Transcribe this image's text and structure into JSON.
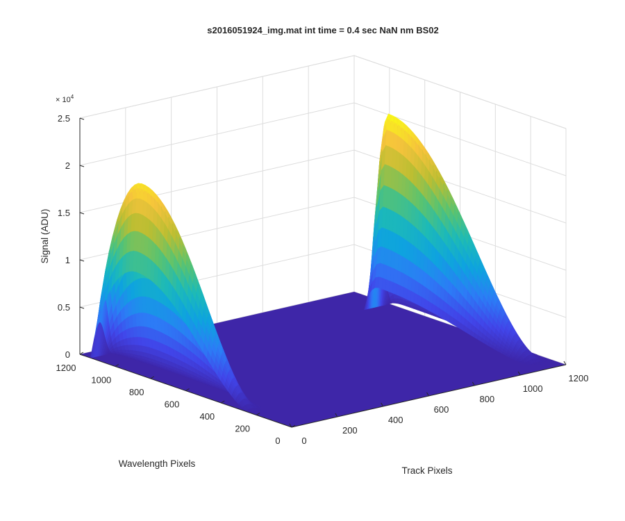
{
  "chart_data": {
    "type": "surface",
    "title": "s2016051924_img.mat int time = 0.4 sec  NaN nm BS02",
    "xlabel": "Track Pixels",
    "ylabel": "Wavelength Pixels",
    "zlabel": "Signal (ADU)",
    "z_exponent_label": "× 10",
    "z_exponent_power": "4",
    "xlim": [
      0,
      1200
    ],
    "ylim": [
      0,
      1200
    ],
    "zlim": [
      0,
      25000
    ],
    "x_ticks": [
      "0",
      "200",
      "400",
      "600",
      "800",
      "1000",
      "1200"
    ],
    "y_ticks": [
      "0",
      "200",
      "400",
      "600",
      "800",
      "1000",
      "1200"
    ],
    "z_ticks": [
      "0",
      "0.5",
      "1",
      "1.5",
      "2",
      "2.5"
    ],
    "grid": true,
    "colormap": [
      "#3e26a8",
      "#4145e9",
      "#2c7cf6",
      "#0ea3df",
      "#1dbab7",
      "#5cc36e",
      "#bcbe32",
      "#f6c33c",
      "#f9fb15"
    ],
    "background_level": 0,
    "peaks": [
      {
        "label": "peak near track 0",
        "track_center": 25,
        "track_width": 45,
        "wavelength_start": 240,
        "wavelength_peak": 880,
        "wavelength_end": 1130,
        "max_signal": 20000
      },
      {
        "label": "peak near track 1200",
        "track_center": 1135,
        "track_width": 45,
        "wavelength_start": 60,
        "wavelength_peak": 920,
        "wavelength_end": 1000,
        "max_signal": 21000
      }
    ]
  }
}
